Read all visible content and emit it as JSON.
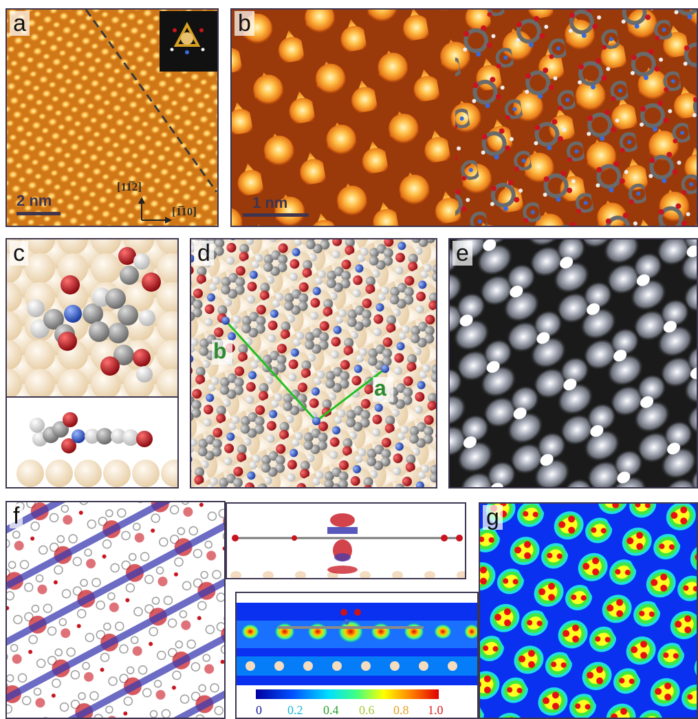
{
  "panels": {
    "a": {
      "label": "a",
      "scale": "2 nm",
      "dir_up": "[11̅2]",
      "dir_right": "[1̅10]"
    },
    "b": {
      "label": "b",
      "scale": "1 nm"
    },
    "c": {
      "label": "c"
    },
    "d": {
      "label": "d",
      "vec_a": "a",
      "vec_b": "b"
    },
    "e": {
      "label": "e"
    },
    "f": {
      "label": "f"
    },
    "g": {
      "label": "g"
    }
  },
  "colorbar": {
    "ticks": [
      "0",
      "0.2",
      "0.4",
      "0.6",
      "0.8",
      "1.0"
    ],
    "tick_colors": [
      "#1a1a9a",
      "#18b8d8",
      "#2ea02e",
      "#a8c83a",
      "#e8a020",
      "#e02020"
    ]
  },
  "colors": {
    "carbon": "#8a8a8a",
    "oxygen": "#c8141e",
    "nitrogen": "#3a6ad8",
    "hydrogen": "#f2f2f2",
    "substrate": "#f3dcc0",
    "frame": "#3d3550"
  }
}
